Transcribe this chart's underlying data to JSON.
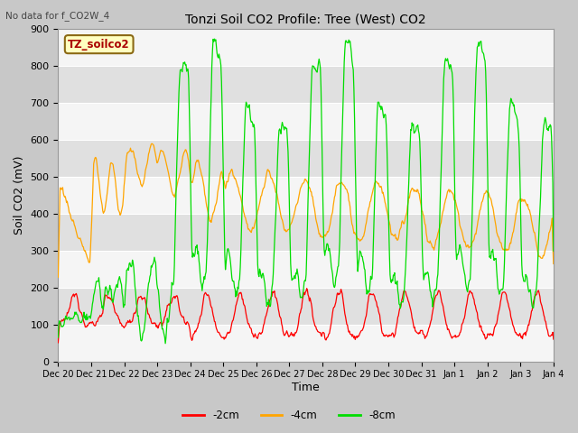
{
  "title": "Tonzi Soil CO2 Profile: Tree (West) CO2",
  "subtitle": "No data for f_CO2W_4",
  "ylabel": "Soil CO2 (mV)",
  "xlabel": "Time",
  "legend_label": "TZ_soilco2",
  "ylim": [
    0,
    900
  ],
  "line_colors": {
    "2cm": "#ff0000",
    "4cm": "#ffa500",
    "8cm": "#00dd00"
  },
  "tick_labels": [
    "Dec 20",
    "Dec 21",
    "Dec 22",
    "Dec 23",
    "Dec 24",
    "Dec 25",
    "Dec 26",
    "Dec 27",
    "Dec 28",
    "Dec 29",
    "Dec 30",
    "Dec 31",
    "Jan 1",
    "Jan 2",
    "Jan 3",
    "Jan 4"
  ],
  "plot_bg_white": "#f5f5f5",
  "plot_bg_gray": "#e0e0e0",
  "legend_entries": [
    "-2cm",
    "-4cm",
    "-8cm"
  ],
  "fig_bg": "#c8c8c8",
  "seed": 12345
}
